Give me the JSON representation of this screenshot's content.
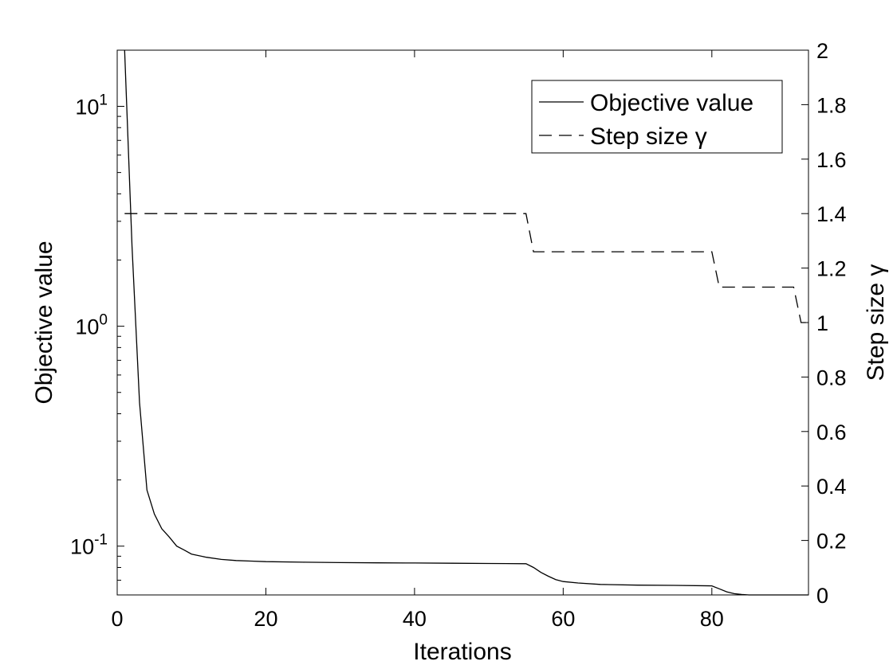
{
  "chart_data": {
    "type": "line",
    "title": "",
    "xlabel": "Iterations",
    "ylabel_left": "Objective value",
    "ylabel_right": "Step size γ",
    "xlim": [
      0,
      93
    ],
    "ylim_left": [
      0.06,
      18
    ],
    "yscale_left": "log",
    "ylim_right": [
      0,
      2
    ],
    "x_ticks": [
      0,
      20,
      40,
      60,
      80
    ],
    "y_left_ticks": [
      {
        "value": 0.1,
        "mantissa": "10",
        "exponent": "-1"
      },
      {
        "value": 1,
        "mantissa": "10",
        "exponent": "0"
      },
      {
        "value": 10,
        "mantissa": "10",
        "exponent": "1"
      }
    ],
    "y_right_ticks": [
      "0",
      "0.2",
      "0.4",
      "0.6",
      "0.8",
      "1",
      "1.2",
      "1.4",
      "1.6",
      "1.8",
      "2"
    ],
    "grid": false,
    "legend_position": "top-right",
    "series": [
      {
        "name": "Objective value",
        "axis": "left",
        "style": "solid",
        "color": "#000000",
        "x": [
          1,
          2,
          3,
          4,
          5,
          6,
          7,
          8,
          9,
          10,
          12,
          14,
          16,
          18,
          20,
          25,
          30,
          35,
          40,
          45,
          50,
          55,
          56,
          57,
          58,
          59,
          60,
          62,
          65,
          70,
          75,
          80,
          81,
          82,
          83,
          84,
          85,
          88,
          91,
          93
        ],
        "values": [
          18,
          2.3,
          0.45,
          0.18,
          0.14,
          0.12,
          0.11,
          0.1,
          0.096,
          0.092,
          0.089,
          0.087,
          0.086,
          0.0855,
          0.085,
          0.0845,
          0.0842,
          0.084,
          0.0838,
          0.0836,
          0.0834,
          0.0832,
          0.08,
          0.076,
          0.073,
          0.0705,
          0.069,
          0.068,
          0.067,
          0.0665,
          0.0663,
          0.066,
          0.064,
          0.062,
          0.0608,
          0.0603,
          0.06,
          0.06,
          0.06,
          0.06
        ]
      },
      {
        "name": "Step size γ",
        "axis": "right",
        "style": "dashed",
        "color": "#000000",
        "x": [
          1,
          55,
          56,
          80,
          81,
          91,
          92,
          93
        ],
        "values": [
          1.4,
          1.4,
          1.26,
          1.26,
          1.13,
          1.13,
          1.0,
          1.0
        ]
      }
    ]
  }
}
